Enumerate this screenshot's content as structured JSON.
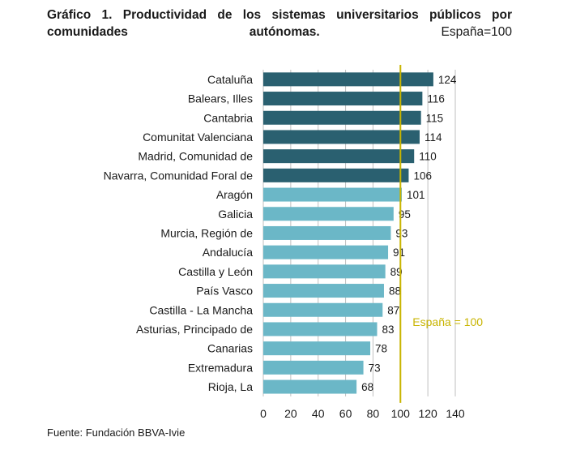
{
  "chart_data": {
    "type": "bar",
    "orientation": "horizontal",
    "title_bold": "Gráfico 1. Productividad de los sistemas universitarios públicos por comunidades autónomas.",
    "title_normal": "España=100",
    "categories": [
      "Cataluña",
      "Balears, Illes",
      "Cantabria",
      "Comunitat Valenciana",
      "Madrid, Comunidad de",
      "Navarra, Comunidad Foral de",
      "Aragón",
      "Galicia",
      "Murcia, Región de",
      "Andalucía",
      "Castilla y León",
      "País Vasco",
      "Castilla - La Mancha",
      "Asturias, Principado de",
      "Canarias",
      "Extremadura",
      "Rioja, La"
    ],
    "values": [
      124,
      116,
      115,
      114,
      110,
      106,
      101,
      95,
      93,
      91,
      89,
      88,
      87,
      83,
      78,
      73,
      68
    ],
    "xlim": [
      0,
      140
    ],
    "xticks": [
      "0",
      "20",
      "40",
      "60",
      "80",
      "100",
      "120",
      "140"
    ],
    "reference_line": {
      "value": 100,
      "label": "España = 100",
      "color": "#c8b400"
    },
    "colors": {
      "above": "#2a6070",
      "below": "#6bb7c7",
      "grid": "#bfbfbf"
    },
    "dark_count": 6,
    "grid": true
  },
  "source": "Fuente: Fundación BBVA-Ivie"
}
